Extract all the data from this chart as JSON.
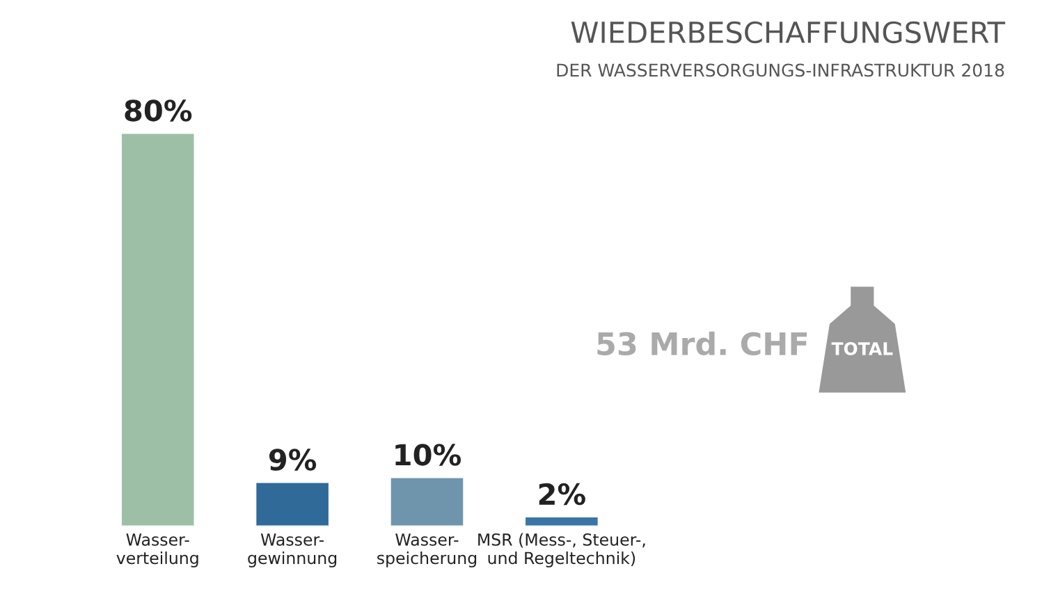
{
  "chart_data": {
    "type": "bar",
    "title": "WIEDERBESCHAFFUNGSWERT",
    "subtitle": "DER WASSERVERSORGUNGS-INFRASTRUKTUR 2018",
    "categories": [
      "Wasser-\nverteilung",
      "Wasser-\ngewinnung",
      "Wasser-\nspeicherung",
      "MSR (Mess-, Steuer-,\nund Regeltechnik)"
    ],
    "values": [
      80,
      9,
      10,
      2
    ],
    "value_labels": [
      "80%",
      "9%",
      "10%",
      "2%"
    ],
    "colors": [
      "#9dbfa6",
      "#2f6a98",
      "#6f95ad",
      "#3a75a6"
    ],
    "annotations": [
      "53 Mrd. CHF",
      "TOTAL"
    ],
    "legend": false
  }
}
